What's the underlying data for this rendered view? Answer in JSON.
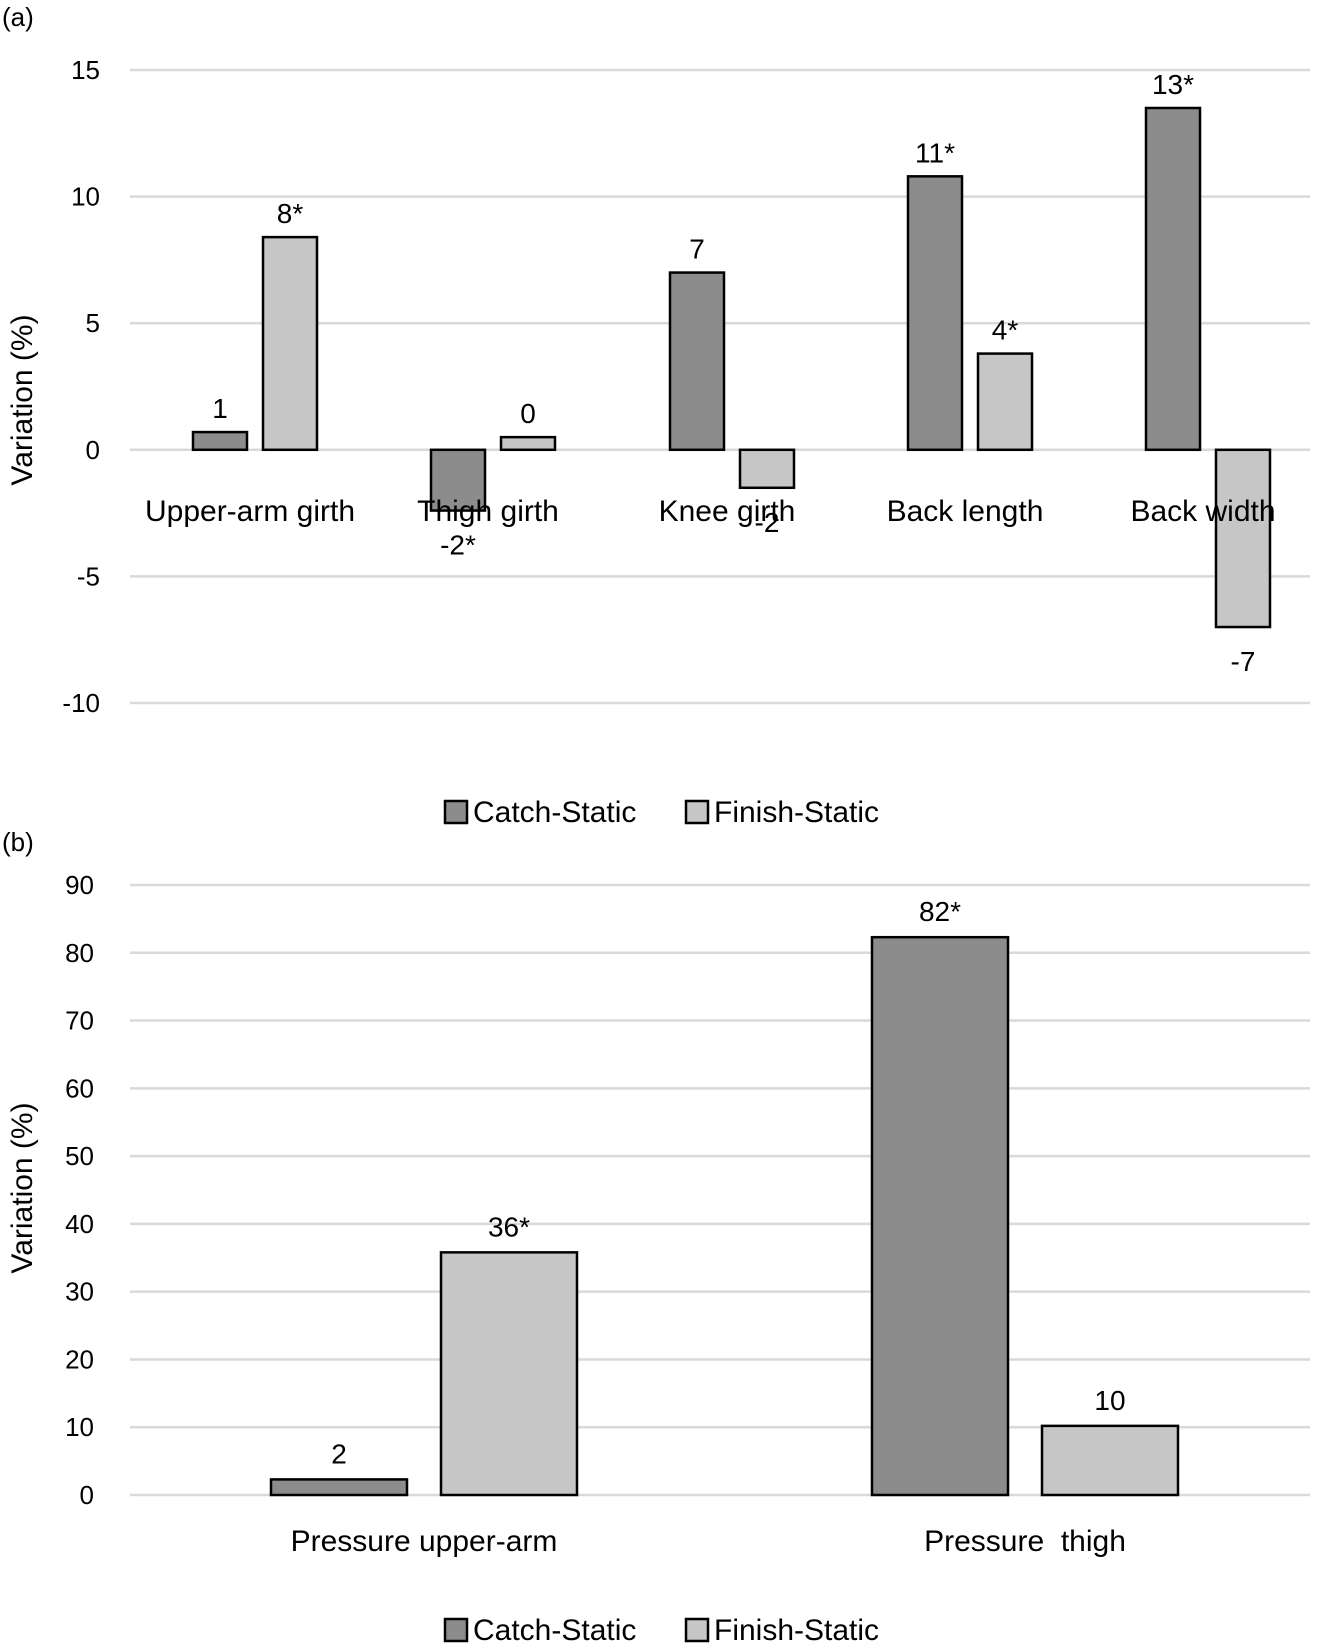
{
  "colors": {
    "catch": "#8c8c8c",
    "finish": "#c6c6c6",
    "grid": "#d9d9d9",
    "edge": "#000000"
  },
  "chart_data": [
    {
      "type": "bar",
      "panel": "(a)",
      "ylabel": "Variation (%)",
      "ylim": [
        -10,
        15
      ],
      "yticks": [
        15,
        10,
        5,
        0,
        -5,
        -10
      ],
      "categories": [
        "Upper-arm girth",
        "Thigh girth",
        "Knee girth",
        "Back length",
        "Back width"
      ],
      "series": [
        {
          "name": "Catch-Static",
          "values": [
            0.7,
            -2.4,
            7.0,
            10.8,
            13.5
          ],
          "labels": [
            "1",
            "-2*",
            "7",
            "11*",
            "13*"
          ]
        },
        {
          "name": "Finish-Static",
          "values": [
            8.4,
            0.5,
            -1.5,
            3.8,
            -7.0
          ],
          "labels": [
            "8*",
            "0",
            "-2",
            "4*",
            "-7"
          ]
        }
      ],
      "legend": [
        "Catch-Static",
        "Finish-Static"
      ],
      "legend_position": "bottom"
    },
    {
      "type": "bar",
      "panel": "(b)",
      "ylabel": "Variation (%)",
      "ylim": [
        0,
        90
      ],
      "yticks": [
        90,
        80,
        70,
        60,
        50,
        40,
        30,
        20,
        10,
        0
      ],
      "categories": [
        "Pressure upper-arm",
        "Pressure  thigh"
      ],
      "series": [
        {
          "name": "Catch-Static",
          "values": [
            2.3,
            82.3
          ],
          "labels": [
            "2",
            "82*"
          ]
        },
        {
          "name": "Finish-Static",
          "values": [
            35.8,
            10.2
          ],
          "labels": [
            "36*",
            "10"
          ]
        }
      ],
      "legend": [
        "Catch-Static",
        "Finish-Static"
      ],
      "legend_position": "bottom"
    }
  ]
}
